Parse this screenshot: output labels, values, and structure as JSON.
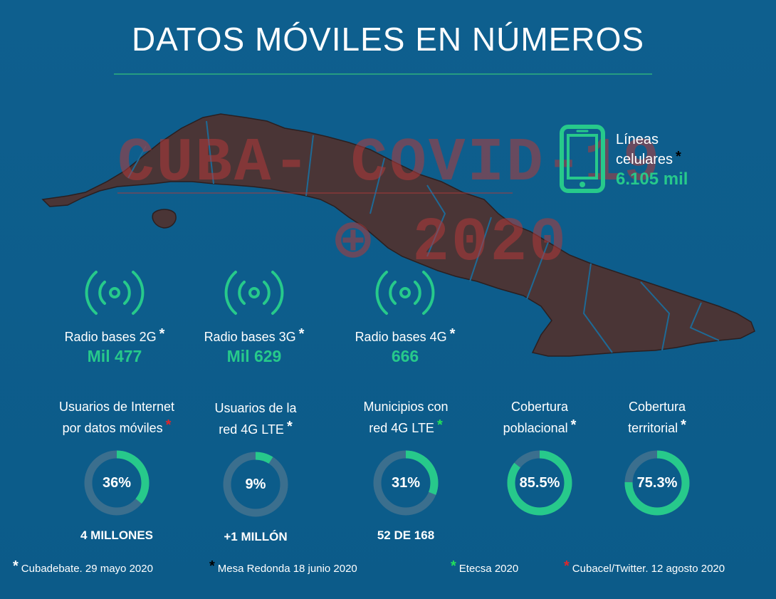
{
  "header": {
    "title": "DATOS MÓVILES EN NÚMEROS"
  },
  "watermark": {
    "line1": "CUBA- COVID-19",
    "line2": "⊕ 2020"
  },
  "lineas_celulares": {
    "label_line1": "Líneas",
    "label_line2": "celulares",
    "value": "6.105 mil",
    "marker": "*",
    "marker_color": "#000000",
    "icon": "smartphone-icon"
  },
  "radio_bases": [
    {
      "label": "Radio bases 2G",
      "value": "Mil 477",
      "marker": "*",
      "marker_color": "#ffffff",
      "icon": "radio-signal-icon"
    },
    {
      "label": "Radio bases 3G",
      "value": "Mil 629",
      "marker": "*",
      "marker_color": "#ffffff",
      "icon": "radio-signal-icon"
    },
    {
      "label": "Radio bases 4G",
      "value": "666",
      "marker": "*",
      "marker_color": "#ffffff",
      "icon": "radio-signal-icon"
    }
  ],
  "stats": [
    {
      "label_line1": "Usuarios de Internet",
      "label_line2": "por datos móviles",
      "marker": "*",
      "marker_color": "#e0262b",
      "value_text": "36%",
      "fraction": 0.36,
      "sub": "4 MILLONES"
    },
    {
      "label_line1": "Usuarios de la",
      "label_line2": "red 4G LTE",
      "marker": "*",
      "marker_color": "#ffffff",
      "value_text": "9%",
      "fraction": 0.09,
      "sub": "+1 MILLÓN"
    },
    {
      "label_line1": "Municipios con",
      "label_line2": "red 4G LTE",
      "marker": "*",
      "marker_color": "#23e05a",
      "value_text": "31%",
      "fraction": 0.31,
      "sub": "52 DE 168"
    },
    {
      "label_line1": "Cobertura",
      "label_line2": "poblacional",
      "marker": "*",
      "marker_color": "#ffffff",
      "value_text": "85.5%",
      "fraction": 0.855,
      "sub": ""
    },
    {
      "label_line1": "Cobertura",
      "label_line2": "territorial",
      "marker": "*",
      "marker_color": "#ffffff",
      "value_text": "75.3%",
      "fraction": 0.753,
      "sub": ""
    }
  ],
  "sources": [
    {
      "marker": "*",
      "marker_color": "#ffffff",
      "text": "Cubadebate. 29 mayo 2020"
    },
    {
      "marker": "*",
      "marker_color": "#000000",
      "text": "Mesa Redonda 18 junio 2020"
    },
    {
      "marker": "*",
      "marker_color": "#23e05a",
      "text": "Etecsa 2020"
    },
    {
      "marker": "*",
      "marker_color": "#e0262b",
      "text": "Cubacel/Twitter. 12 agosto 2020"
    }
  ],
  "colors": {
    "background": "#0e5f8e",
    "accent_green": "#27c98b",
    "ring_track": "#3b6f8e",
    "map_fill": "#4a3536"
  }
}
